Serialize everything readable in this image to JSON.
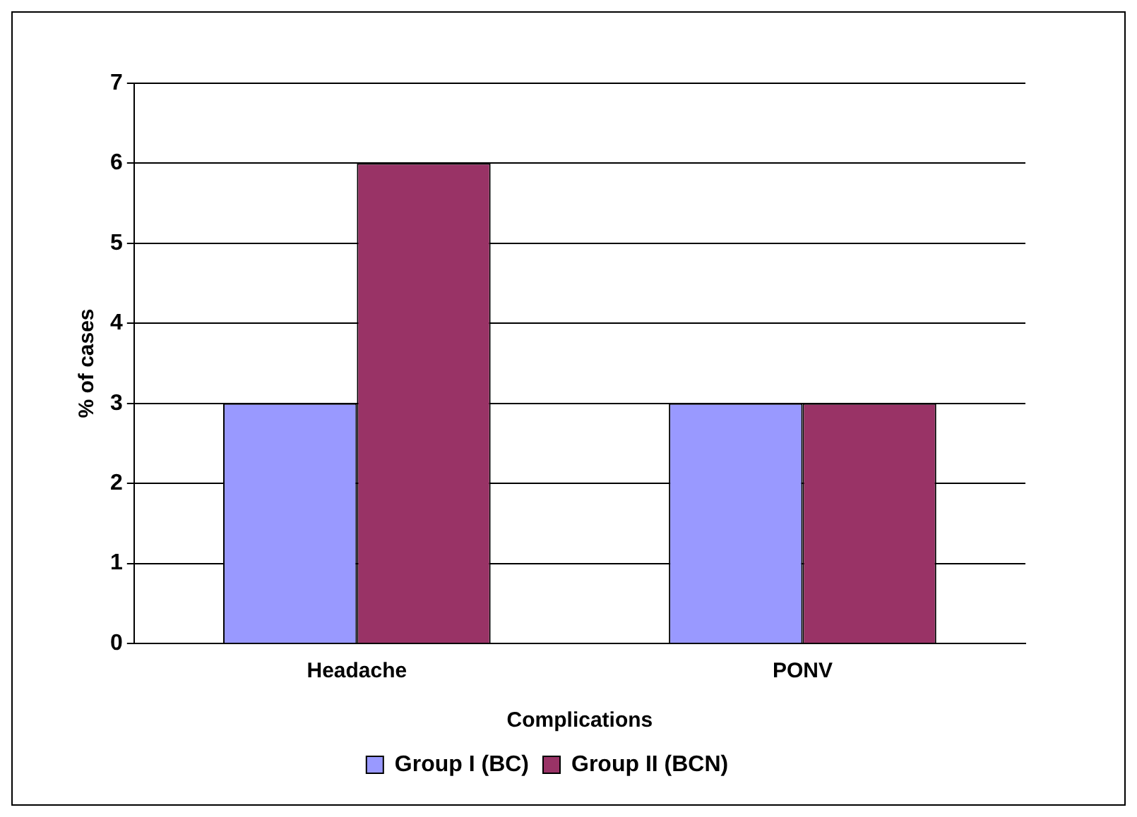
{
  "chart_data": {
    "type": "bar",
    "xlabel": "Complications",
    "ylabel": "% of cases",
    "categories": [
      "Headache",
      "PONV"
    ],
    "series": [
      {
        "name": "Group I (BC)",
        "color": "#9999ff",
        "values": [
          3,
          3
        ]
      },
      {
        "name": "Group II (BCN)",
        "color": "#993366",
        "values": [
          6,
          3
        ]
      }
    ],
    "ylim": [
      0,
      7
    ],
    "yticks": [
      0,
      1,
      2,
      3,
      4,
      5,
      6,
      7
    ],
    "grid": "y",
    "legend": "bottom"
  }
}
